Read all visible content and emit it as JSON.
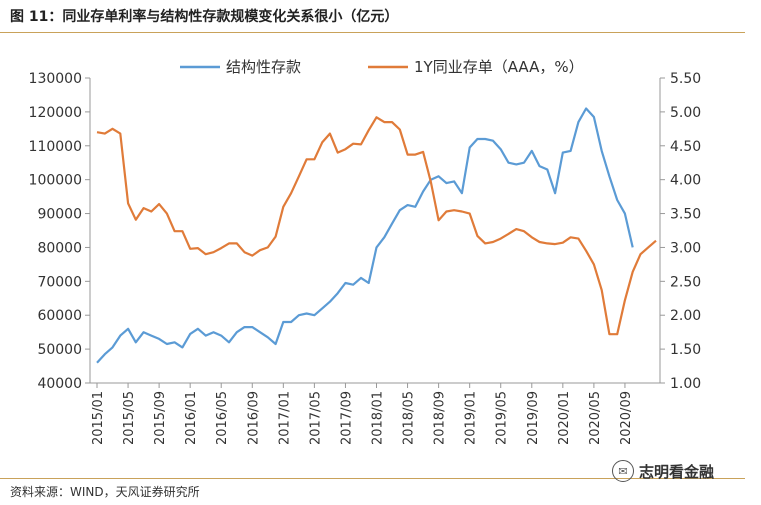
{
  "title": "图 11：同业存单利率与结构性存款规模变化关系很小（亿元）",
  "source": "资料来源：WIND，天风证券研究所",
  "watermark": "志明看金融",
  "watermark_icon": "wechat-icon",
  "colors": {
    "structural": "#5b9bd5",
    "ncd": "#e07b39",
    "rule": "#c9a25a"
  },
  "chart_data": {
    "type": "line",
    "title": "",
    "legend_position": "top",
    "grid": false,
    "x_tick_labels": [
      "2015/01",
      "2015/05",
      "2015/09",
      "2016/01",
      "2016/05",
      "2016/09",
      "2017/01",
      "2017/05",
      "2017/09",
      "2018/01",
      "2018/05",
      "2018/09",
      "2019/01",
      "2019/05",
      "2019/09",
      "2020/01",
      "2020/05",
      "2020/09"
    ],
    "y_left": {
      "min": 40000,
      "max": 130000,
      "step": 10000
    },
    "y_right": {
      "min": 1.0,
      "max": 5.5,
      "step": 0.5,
      "tick_labels": [
        "1.00",
        "1.50",
        "2.00",
        "2.50",
        "3.00",
        "3.50",
        "4.00",
        "4.50",
        "5.00",
        "5.50"
      ]
    },
    "series": [
      {
        "name": "结构性存款",
        "axis": "left",
        "values": [
          46000,
          48500,
          50500,
          54000,
          56000,
          52000,
          55000,
          54000,
          53000,
          51500,
          52000,
          50500,
          54500,
          56000,
          54000,
          55000,
          54000,
          52000,
          55000,
          56500,
          56500,
          55000,
          53500,
          51500,
          58000,
          58000,
          60000,
          60500,
          60000,
          62000,
          64000,
          66500,
          69500,
          69000,
          71000,
          69500,
          80000,
          83000,
          87000,
          91000,
          92500,
          92000,
          96500,
          100000,
          101000,
          99000,
          99500,
          96000,
          109500,
          112000,
          112000,
          111500,
          109000,
          105000,
          104500,
          105000,
          108500,
          104000,
          103000,
          96000,
          108000,
          108500,
          117000,
          121000,
          118500,
          108500,
          101000,
          94000,
          90000,
          80000
        ]
      },
      {
        "name": "1Y同业存单（AAA，%）",
        "axis": "right",
        "values": [
          4.7,
          4.68,
          4.75,
          4.68,
          3.65,
          3.41,
          3.58,
          3.53,
          3.64,
          3.5,
          3.24,
          3.24,
          2.98,
          2.99,
          2.9,
          2.93,
          2.99,
          3.06,
          3.06,
          2.93,
          2.88,
          2.96,
          3.0,
          3.16,
          3.6,
          3.8,
          4.05,
          4.3,
          4.3,
          4.55,
          4.68,
          4.4,
          4.45,
          4.53,
          4.52,
          4.73,
          4.92,
          4.85,
          4.85,
          4.74,
          4.37,
          4.37,
          4.41,
          3.97,
          3.4,
          3.53,
          3.55,
          3.53,
          3.5,
          3.17,
          3.06,
          3.08,
          3.13,
          3.2,
          3.27,
          3.24,
          3.15,
          3.08,
          3.06,
          3.05,
          3.07,
          3.15,
          3.13,
          2.95,
          2.75,
          2.37,
          1.72,
          1.72,
          2.22,
          2.64,
          2.9,
          3.0,
          3.1
        ]
      }
    ]
  }
}
